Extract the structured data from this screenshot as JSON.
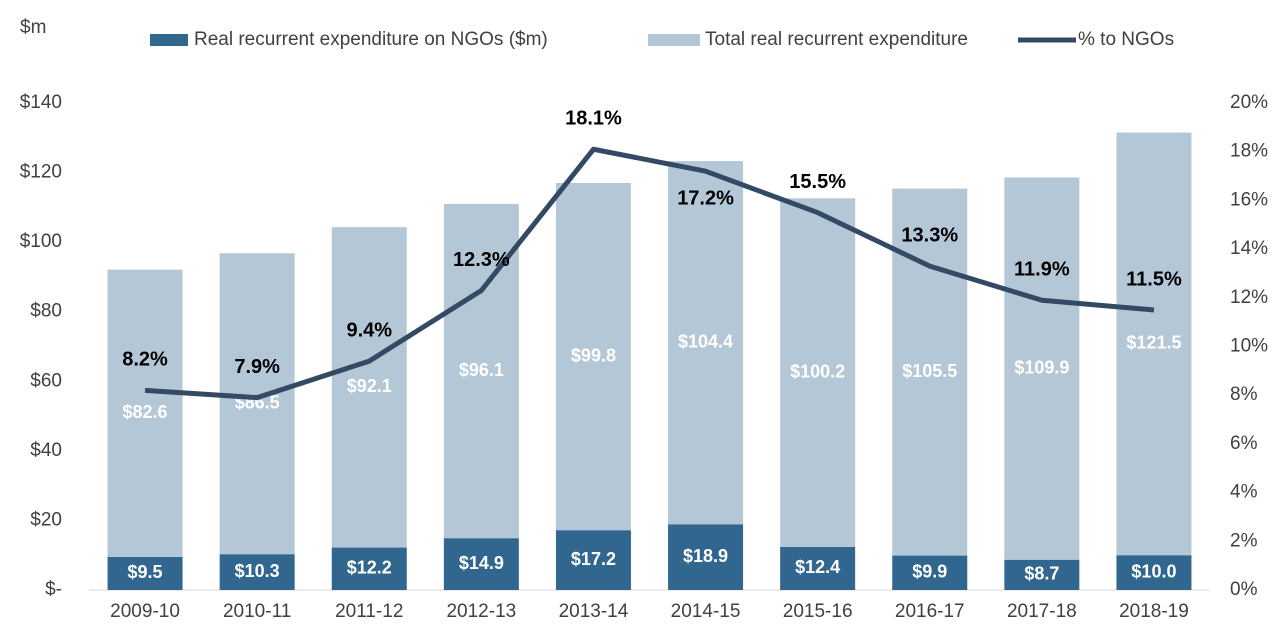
{
  "chart_data": {
    "type": "bar",
    "y_label": "$m",
    "categories": [
      "2009-10",
      "2010-11",
      "2011-12",
      "2012-13",
      "2013-14",
      "2014-15",
      "2015-16",
      "2016-17",
      "2017-18",
      "2018-19"
    ],
    "series": [
      {
        "name": "Real recurrent expenditure on NGOs ($m)",
        "color": "#31678f",
        "type": "bar",
        "values": [
          9.5,
          10.3,
          12.2,
          14.9,
          17.2,
          18.9,
          12.4,
          9.9,
          8.7,
          10.0
        ],
        "value_labels": [
          "$9.5",
          "$10.3",
          "$12.2",
          "$14.9",
          "$17.2",
          "$18.9",
          "$12.4",
          "$9.9",
          "$8.7",
          "$10.0"
        ]
      },
      {
        "name": "Total real recurrent expenditure",
        "color": "#b4c7d7",
        "type": "bar",
        "values": [
          82.6,
          86.5,
          92.1,
          96.1,
          99.8,
          104.4,
          100.2,
          105.5,
          109.9,
          121.5
        ],
        "value_labels": [
          "$82.6",
          "$86.5",
          "$92.1",
          "$96.1",
          "$99.8",
          "$104.4",
          "$100.2",
          "$105.5",
          "$109.9",
          "$121.5"
        ]
      },
      {
        "name": "% to NGOs",
        "color": "#344a64",
        "type": "line",
        "axis": "y2",
        "values": [
          8.2,
          7.9,
          9.4,
          12.3,
          18.1,
          17.2,
          15.5,
          13.3,
          11.9,
          11.5
        ],
        "value_labels": [
          "8.2%",
          "7.9%",
          "9.4%",
          "12.3%",
          "18.1%",
          "17.2%",
          "15.5%",
          "13.3%",
          "11.9%",
          "11.5%"
        ]
      }
    ],
    "ylim": [
      0,
      140
    ],
    "yticks": [
      {
        "value": 0,
        "label": "$-"
      },
      {
        "value": 20,
        "label": "$20"
      },
      {
        "value": 40,
        "label": "$40"
      },
      {
        "value": 60,
        "label": "$60"
      },
      {
        "value": 80,
        "label": "$80"
      },
      {
        "value": 100,
        "label": "$100"
      },
      {
        "value": 120,
        "label": "$120"
      },
      {
        "value": 140,
        "label": "$140"
      }
    ],
    "y2lim": [
      0,
      20
    ],
    "y2ticks": [
      {
        "value": 0,
        "label": "0%"
      },
      {
        "value": 2,
        "label": "2%"
      },
      {
        "value": 4,
        "label": "4%"
      },
      {
        "value": 6,
        "label": "6%"
      },
      {
        "value": 8,
        "label": "8%"
      },
      {
        "value": 10,
        "label": "10%"
      },
      {
        "value": 12,
        "label": "12%"
      },
      {
        "value": 14,
        "label": "14%"
      },
      {
        "value": 16,
        "label": "16%"
      },
      {
        "value": 18,
        "label": "18%"
      },
      {
        "value": 20,
        "label": "20%"
      }
    ],
    "legend": "top",
    "grid": false
  }
}
